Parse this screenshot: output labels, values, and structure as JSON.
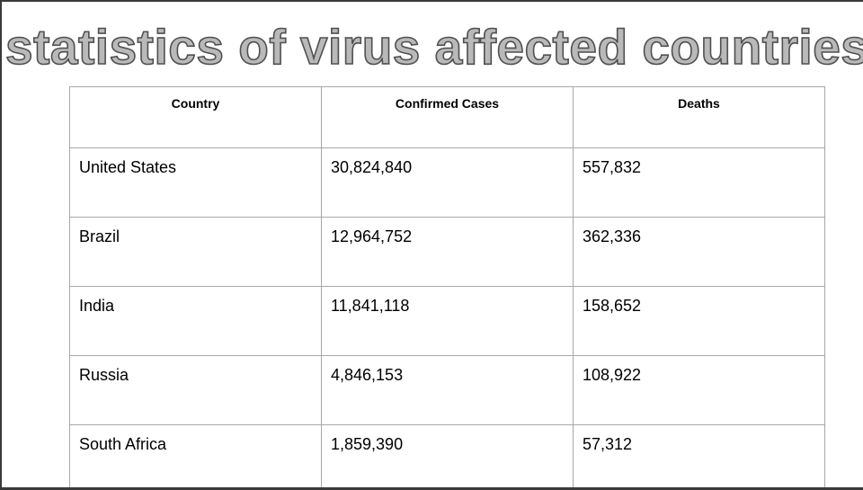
{
  "title": "statistics of virus affected countries",
  "table": {
    "headers": [
      "Country",
      "Confirmed Cases",
      "Deaths"
    ],
    "rows": [
      [
        "United States",
        "30,824,840",
        "557,832"
      ],
      [
        "Brazil",
        "12,964,752",
        "362,336"
      ],
      [
        "India",
        "11,841,118",
        "158,652"
      ],
      [
        "Russia",
        "4,846,153",
        "108,922"
      ],
      [
        "South Africa",
        "1,859,390",
        "57,312"
      ]
    ]
  }
}
